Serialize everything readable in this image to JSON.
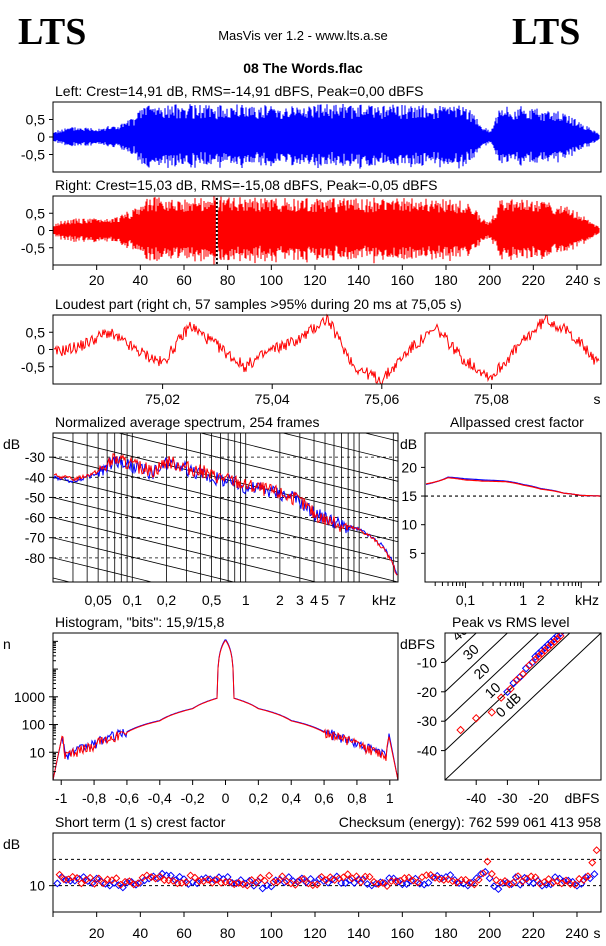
{
  "header": {
    "logo_left": "LTS",
    "logo_right": "LTS",
    "app_title": "MasVis ver 1.2 - www.lts.a.se",
    "file_name": "08 The Words.flac"
  },
  "colors": {
    "left": "#0000ff",
    "right": "#ff0000"
  },
  "chart_data": [
    {
      "id": "left-waveform",
      "type": "area",
      "title": "Left: Crest=14,91 dB, RMS=-14,91 dBFS, Peak=0,00 dBFS",
      "y_ticks": [
        "0,5",
        "0",
        "-0,5"
      ],
      "ylim": [
        -1,
        1
      ],
      "xlim": [
        0,
        251
      ],
      "color": "#0000ff",
      "envelope": {
        "t": [
          0,
          5,
          10,
          20,
          30,
          38,
          42,
          50,
          60,
          75,
          90,
          110,
          130,
          150,
          170,
          190,
          196,
          200,
          205,
          210,
          220,
          235,
          245,
          251
        ],
        "amp": [
          0.15,
          0.25,
          0.3,
          0.28,
          0.35,
          0.6,
          1.0,
          0.9,
          0.95,
          0.9,
          0.95,
          0.92,
          0.95,
          0.95,
          0.93,
          0.9,
          0.35,
          0.2,
          0.85,
          0.9,
          0.88,
          0.7,
          0.3,
          0.05
        ]
      }
    },
    {
      "id": "right-waveform",
      "type": "area",
      "title": "Right: Crest=15,03 dB, RMS=-15,08 dBFS, Peak=-0,05 dBFS",
      "y_ticks": [
        "0,5",
        "0",
        "-0,5"
      ],
      "x_ticks": [
        20,
        40,
        60,
        80,
        100,
        120,
        140,
        160,
        180,
        200,
        220,
        240
      ],
      "x_unit": "s",
      "ylim": [
        -1,
        1
      ],
      "xlim": [
        0,
        251
      ],
      "color": "#ff0000",
      "marker_x": 75.05,
      "envelope": {
        "t": [
          0,
          5,
          10,
          20,
          30,
          38,
          42,
          50,
          60,
          75,
          90,
          110,
          130,
          150,
          170,
          190,
          196,
          200,
          205,
          210,
          220,
          235,
          245,
          251
        ],
        "amp": [
          0.2,
          0.3,
          0.35,
          0.35,
          0.4,
          0.7,
          1.0,
          0.95,
          0.95,
          1.0,
          0.95,
          0.95,
          0.95,
          0.95,
          0.93,
          0.9,
          0.4,
          0.25,
          0.9,
          0.92,
          0.9,
          0.75,
          0.35,
          0.05
        ]
      }
    },
    {
      "id": "loudest-part",
      "type": "line",
      "title": "Loudest part (right ch, 57 samples >95% during 20 ms at 75,05 s)",
      "y_ticks": [
        "0,5",
        "0",
        "-0,5"
      ],
      "x_ticks": [
        "75,02",
        "75,04",
        "75,06",
        "75,08"
      ],
      "x_tick_values": [
        75.02,
        75.04,
        75.06,
        75.08
      ],
      "x_unit": "s",
      "xlim": [
        75.0,
        75.1
      ],
      "ylim": [
        -1,
        1
      ],
      "color": "#ff0000",
      "x": [
        75.0,
        75.005,
        75.01,
        75.015,
        75.02,
        75.025,
        75.03,
        75.035,
        75.04,
        75.045,
        75.05,
        75.055,
        75.06,
        75.065,
        75.07,
        75.075,
        75.08,
        75.085,
        75.09,
        75.095,
        75.1
      ],
      "y": [
        -0.1,
        0.1,
        0.5,
        0.0,
        -0.4,
        0.7,
        0.1,
        -0.5,
        0.0,
        0.3,
        0.9,
        -0.5,
        -0.9,
        0.0,
        0.6,
        -0.3,
        -0.8,
        0.1,
        0.9,
        0.4,
        -0.5
      ]
    },
    {
      "id": "spectrum",
      "type": "line",
      "title": "Normalized average spectrum, 254 frames",
      "ylabel": "dB",
      "y_ticks": [
        -30,
        -40,
        -50,
        -60,
        -70,
        -80
      ],
      "ylim": [
        -92,
        -18
      ],
      "x_ticks": [
        "0,05",
        "0,1",
        "0,2",
        "0,5",
        "1",
        "2",
        "3",
        "4",
        "5",
        "7"
      ],
      "x_tick_values": [
        0.05,
        0.1,
        0.2,
        0.5,
        1,
        2,
        3,
        4,
        5,
        7
      ],
      "x_unit": "kHz",
      "xlim": [
        0.02,
        22
      ],
      "series": [
        {
          "color": "#0000ff",
          "x": [
            0.02,
            0.03,
            0.05,
            0.07,
            0.1,
            0.15,
            0.2,
            0.3,
            0.5,
            0.7,
            1,
            1.5,
            2,
            3,
            4,
            5,
            7,
            10,
            13,
            16,
            19,
            22
          ],
          "y": [
            -40,
            -42,
            -38,
            -32,
            -35,
            -38,
            -33,
            -36,
            -40,
            -42,
            -45,
            -46,
            -48,
            -52,
            -58,
            -60,
            -64,
            -66,
            -70,
            -74,
            -80,
            -90
          ]
        },
        {
          "color": "#ff0000",
          "x": [
            0.02,
            0.03,
            0.05,
            0.07,
            0.1,
            0.15,
            0.2,
            0.3,
            0.5,
            0.7,
            1,
            1.5,
            2,
            3,
            4,
            5,
            7,
            10,
            13,
            16,
            19,
            22
          ],
          "y": [
            -39,
            -41,
            -37,
            -31,
            -34,
            -37,
            -32,
            -35,
            -39,
            -41,
            -44,
            -46,
            -48,
            -52,
            -58,
            -61,
            -64,
            -66,
            -70,
            -75,
            -81,
            -90
          ]
        }
      ]
    },
    {
      "id": "allpassed-crest",
      "type": "line",
      "title": "Allpassed crest factor",
      "ylabel": "dB",
      "y_ticks": [
        20,
        15,
        10,
        5
      ],
      "ylim": [
        0,
        26
      ],
      "x_ticks": [
        "0,1",
        "1",
        "2",
        "kHz"
      ],
      "x_tick_values": [
        0.1,
        1,
        2
      ],
      "xlim": [
        0.02,
        22
      ],
      "reference_line": 15,
      "series": [
        {
          "color": "#0000ff",
          "x": [
            0.02,
            0.05,
            0.1,
            0.2,
            0.5,
            1,
            2,
            5,
            10,
            22
          ],
          "y": [
            17.0,
            18.3,
            18.0,
            17.8,
            17.6,
            17.0,
            16.3,
            15.5,
            15.1,
            15.0
          ]
        },
        {
          "color": "#ff0000",
          "x": [
            0.02,
            0.05,
            0.1,
            0.2,
            0.5,
            1,
            2,
            5,
            10,
            22
          ],
          "y": [
            17.1,
            18.2,
            17.8,
            17.6,
            17.5,
            16.9,
            16.2,
            15.5,
            15.1,
            15.0
          ]
        }
      ]
    },
    {
      "id": "histogram",
      "type": "line",
      "title": "Histogram, \"bits\": 15,9/15,8",
      "ylabel": "n",
      "y_ticks": [
        "1000",
        "100",
        "10"
      ],
      "y_tick_values": [
        1000,
        100,
        10
      ],
      "ylim": [
        1,
        200000
      ],
      "y_scale": "log",
      "x_ticks": [
        "-1",
        "-0,8",
        "-0,6",
        "-0,4",
        "-0,2",
        "0",
        "0,2",
        "0,4",
        "0,6",
        "0,8",
        "1"
      ],
      "x_tick_values": [
        -1,
        -0.8,
        -0.6,
        -0.4,
        -0.2,
        0,
        0.2,
        0.4,
        0.6,
        0.8,
        1
      ],
      "xlim": [
        -1.05,
        1.05
      ],
      "series": [
        {
          "color": "#0000ff",
          "x": [
            -1.0,
            -0.98,
            -0.9,
            -0.8,
            -0.6,
            -0.4,
            -0.2,
            -0.05,
            0,
            0.05,
            0.2,
            0.4,
            0.6,
            0.8,
            0.9,
            0.98,
            1.0
          ],
          "y": [
            60,
            8,
            12,
            20,
            55,
            140,
            380,
            900,
            120000,
            900,
            380,
            140,
            55,
            20,
            12,
            8,
            60
          ]
        },
        {
          "color": "#ff0000",
          "x": [
            -1.0,
            -0.98,
            -0.9,
            -0.8,
            -0.6,
            -0.4,
            -0.2,
            -0.05,
            0,
            0.05,
            0.2,
            0.4,
            0.6,
            0.8,
            0.9,
            0.98,
            1.0
          ],
          "y": [
            50,
            7,
            11,
            19,
            52,
            135,
            370,
            880,
            110000,
            880,
            370,
            135,
            52,
            19,
            11,
            7,
            50
          ]
        }
      ]
    },
    {
      "id": "peak-vs-rms",
      "type": "scatter",
      "title": "Peak vs RMS level",
      "ylabel": "dBFS",
      "xlabel": "dBFS",
      "y_ticks": [
        -10,
        -20,
        -30,
        -40
      ],
      "x_ticks": [
        -40,
        -30,
        -20
      ],
      "xlim": [
        -50,
        0
      ],
      "ylim": [
        -50,
        0
      ],
      "diagonal_labels": [
        "40",
        "30",
        "20",
        "10",
        "0 dB"
      ],
      "diagonal_offsets": [
        40,
        30,
        20,
        10,
        0
      ],
      "series": [
        {
          "color": "#0000ff",
          "x": [
            -30,
            -28,
            -26,
            -24,
            -22,
            -21,
            -20,
            -19,
            -18,
            -17,
            -16,
            -15,
            -14,
            -13
          ],
          "y": [
            -20,
            -17,
            -15,
            -12,
            -10,
            -8,
            -7,
            -6,
            -5,
            -4,
            -3,
            -2,
            -1,
            0
          ]
        },
        {
          "color": "#ff0000",
          "x": [
            -45,
            -40,
            -35,
            -32,
            -29,
            -27,
            -25,
            -23,
            -21,
            -20,
            -19,
            -18,
            -17,
            -16,
            -15,
            -14,
            -13
          ],
          "y": [
            -33,
            -29,
            -27,
            -22,
            -19,
            -16,
            -14,
            -11,
            -9,
            -8,
            -7,
            -6,
            -5,
            -4,
            -3,
            -2,
            -1
          ]
        }
      ]
    },
    {
      "id": "short-term-crest",
      "type": "scatter",
      "title": "Short term (1 s) crest factor",
      "annotation": "Checksum (energy):   762 599 061 413 958",
      "ylabel": "dB",
      "y_ticks": [
        10
      ],
      "ylim": [
        0,
        30
      ],
      "reference_lines": [
        10,
        20
      ],
      "x_ticks": [
        20,
        40,
        60,
        80,
        100,
        120,
        140,
        160,
        180,
        200,
        220,
        240
      ],
      "x_unit": "s",
      "xlim": [
        0,
        251
      ],
      "series": [
        {
          "color": "#0000ff",
          "x": [
            2,
            12,
            22,
            32,
            42,
            52,
            62,
            72,
            82,
            92,
            102,
            112,
            122,
            132,
            142,
            152,
            162,
            172,
            182,
            192,
            197,
            202,
            212,
            222,
            232,
            242,
            249
          ],
          "y": [
            12,
            13,
            11,
            10,
            12,
            14,
            11,
            13,
            12,
            10,
            11,
            13,
            12,
            12,
            11,
            12,
            11,
            12,
            13,
            11,
            17,
            9,
            12,
            11,
            12,
            11,
            14
          ]
        },
        {
          "color": "#ff0000",
          "x": [
            4,
            14,
            24,
            34,
            44,
            54,
            64,
            74,
            84,
            94,
            104,
            114,
            124,
            134,
            144,
            154,
            164,
            174,
            184,
            194,
            199,
            204,
            214,
            224,
            234,
            244,
            250
          ],
          "y": [
            14,
            12,
            12,
            11,
            13,
            12,
            13,
            12,
            11,
            12,
            13,
            11,
            12,
            13,
            12,
            11,
            12,
            13,
            11,
            12,
            18,
            10,
            13,
            12,
            11,
            12,
            24
          ]
        }
      ]
    }
  ]
}
